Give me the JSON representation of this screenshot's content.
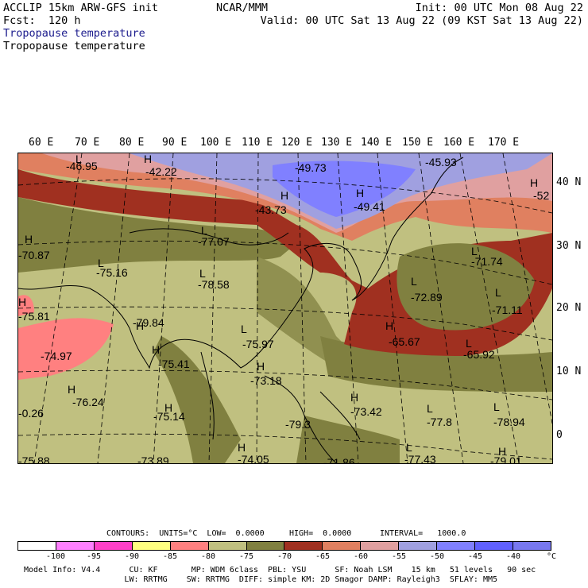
{
  "header": {
    "model": "ACCLIP 15km ARW-GFS init",
    "forecast": "Fcst:  120 h",
    "title_blue": "Tropopause temperature",
    "title_black": "Tropopause temperature",
    "center": "NCAR/MMM",
    "init": "Init: 00 UTC Mon 08 Aug 22",
    "valid": "Valid: 00 UTC Sat 13 Aug 22 (09 KST Sat 13 Aug 22)"
  },
  "lon_labels": [
    "60 E",
    "70 E",
    "80 E",
    "90 E",
    "100 E",
    "110 E",
    "120 E",
    "130 E",
    "140 E",
    "150 E",
    "160 E",
    "170 E"
  ],
  "lat_labels": [
    "40 N",
    "30 N",
    "20 N",
    "10 N",
    "0"
  ],
  "map_labels": [
    {
      "t": "-46.95"
    },
    {
      "t": "-42.22"
    },
    {
      "t": "-49.73"
    },
    {
      "t": "-45.93"
    },
    {
      "t": "-52"
    },
    {
      "t": "-43.73"
    },
    {
      "t": "-49.41"
    },
    {
      "t": "-70.87"
    },
    {
      "t": "-77.07"
    },
    {
      "t": "-71.74"
    },
    {
      "t": "-75.16"
    },
    {
      "t": "-78.58"
    },
    {
      "t": "-72.89"
    },
    {
      "t": "-71.11"
    },
    {
      "t": "-75.81"
    },
    {
      "t": "-79.84"
    },
    {
      "t": "-65.67"
    },
    {
      "t": "-74.97"
    },
    {
      "t": "-75.97"
    },
    {
      "t": "-65.92"
    },
    {
      "t": "-75.41"
    },
    {
      "t": "-73.18"
    },
    {
      "t": "-76.24"
    },
    {
      "t": "-73.42"
    },
    {
      "t": "-0.26"
    },
    {
      "t": "-75.14"
    },
    {
      "t": "-77.8"
    },
    {
      "t": "-78.94"
    },
    {
      "t": "-79.3"
    },
    {
      "t": "-75.88"
    },
    {
      "t": "-73.89"
    },
    {
      "t": "-74.05"
    },
    {
      "t": "-71.86"
    },
    {
      "t": "-77.43"
    },
    {
      "t": "-79.01"
    }
  ],
  "hl_markers": [
    "H",
    "H",
    "H",
    "H",
    "H",
    "H",
    "H",
    "H",
    "H",
    "H",
    "H",
    "H",
    "H",
    "H",
    "H",
    "L",
    "L",
    "L",
    "L",
    "L",
    "L",
    "L",
    "L",
    "L",
    "L",
    "L",
    "L"
  ],
  "contour_info": {
    "contours": "CONTOURS:  UNITS=°C  LOW=  0.0000",
    "high": "HIGH=  0.0000",
    "interval": "INTERVAL=   1000.0"
  },
  "legend": {
    "colors": [
      "#ffffff",
      "#ff80ff",
      "#ff40c8",
      "#ffff80",
      "#ff8080",
      "#c0c080",
      "#808040",
      "#a03020",
      "#e08060",
      "#e0a0a0",
      "#a0a0e0",
      "#8080ff",
      "#6060ff",
      "#7878f0"
    ],
    "ticks": [
      "-100",
      "-95",
      "-90",
      "-85",
      "-80",
      "-75",
      "-70",
      "-65",
      "-60",
      "-55",
      "-50",
      "-45",
      "-40",
      "°C"
    ]
  },
  "footer": {
    "line1": "Model Info: V4.4      CU: KF       MP: WDM 6class  PBL: YSU      SF: Noah LSM    15 km   51 levels   90 sec",
    "line2": "                     LW: RRTMG    SW: RRTMG  DIFF: simple KM: 2D Smagor DAMP: Rayleigh3  SFLAY: MM5"
  }
}
